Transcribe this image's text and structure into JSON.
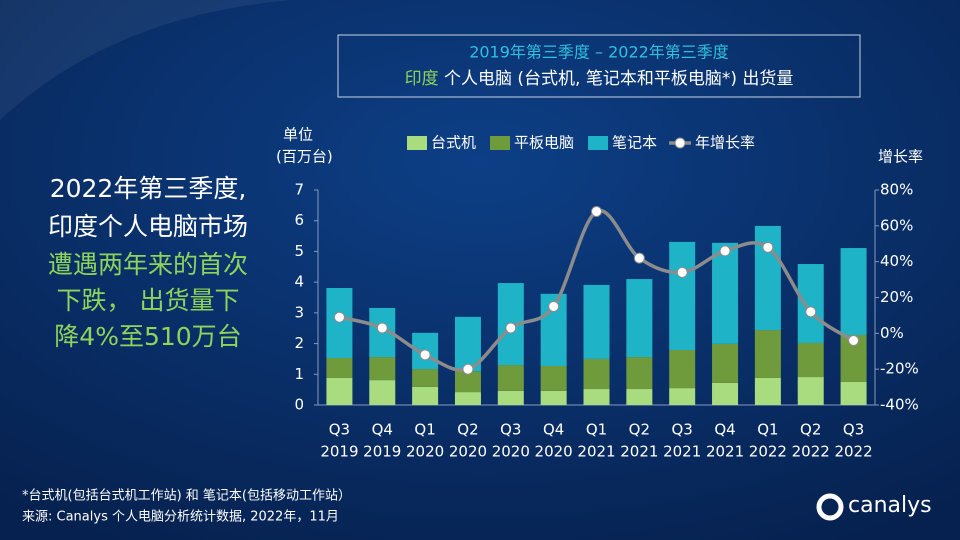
{
  "chart_data": {
    "type": "bar",
    "stacked": true,
    "title": "2019年第三季度 – 2022年第三季度",
    "subtitle_parts": [
      "印度",
      "个人电脑 (台式机, 笔记本和平板电脑*)  出货量"
    ],
    "ylabel": [
      "单位",
      "(百万台)"
    ],
    "y2label": "增长率",
    "categories": [
      [
        "Q3",
        "2019"
      ],
      [
        "Q4",
        "2019"
      ],
      [
        "Q1",
        "2020"
      ],
      [
        "Q2",
        "2020"
      ],
      [
        "Q3",
        "2020"
      ],
      [
        "Q4",
        "2020"
      ],
      [
        "Q1",
        "2021"
      ],
      [
        "Q2",
        "2021"
      ],
      [
        "Q3",
        "2021"
      ],
      [
        "Q4",
        "2021"
      ],
      [
        "Q1",
        "2022"
      ],
      [
        "Q2",
        "2022"
      ],
      [
        "Q3",
        "2022"
      ]
    ],
    "series": [
      {
        "name": "台式机",
        "color": "#a9dc7f",
        "values": [
          0.88,
          0.81,
          0.59,
          0.42,
          0.46,
          0.46,
          0.52,
          0.52,
          0.55,
          0.72,
          0.88,
          0.91,
          0.75
        ]
      },
      {
        "name": "平板电脑",
        "color": "#6f9b3c",
        "values": [
          0.65,
          0.75,
          0.58,
          0.68,
          0.84,
          0.81,
          0.98,
          1.04,
          1.24,
          1.27,
          1.56,
          1.11,
          1.53
        ]
      },
      {
        "name": "笔记本",
        "color": "#1fb3c8",
        "values": [
          2.28,
          1.6,
          1.18,
          1.77,
          2.67,
          2.35,
          2.41,
          2.54,
          3.52,
          3.29,
          3.39,
          2.57,
          2.83
        ]
      },
      {
        "name": "年增长率",
        "type": "line",
        "axis": "y2",
        "color": "#8c8c8c",
        "values": [
          9,
          3,
          -12,
          -20,
          3,
          15,
          68,
          42,
          34,
          46,
          48,
          12,
          -4
        ]
      }
    ],
    "ylim": [
      0,
      7
    ],
    "yticks": [
      0,
      1,
      2,
      3,
      4,
      5,
      6,
      7
    ],
    "y2lim": [
      -40,
      80
    ],
    "y2ticks": [
      {
        "value": -40,
        "label": "-40%"
      },
      {
        "value": -20,
        "label": "-20%"
      },
      {
        "value": 0,
        "label": "0%"
      },
      {
        "value": 20,
        "label": "20%"
      },
      {
        "value": 40,
        "label": "40%"
      },
      {
        "value": 60,
        "label": "60%"
      },
      {
        "value": 80,
        "label": "80%"
      }
    ],
    "legend": "top"
  },
  "headline": {
    "white": [
      "2022年第三季度,",
      "印度个人电脑市场"
    ],
    "green": [
      "遭遇两年来的首次",
      "下跌， 出货量下",
      "降4%至510万台"
    ]
  },
  "footnotes": [
    "*台式机(包括台式机工作站) 和 笔记本(包括移动工作站）",
    "来源: Canalys 个人电脑分析统计数据, 2022年，11月"
  ],
  "logo": "canalys"
}
